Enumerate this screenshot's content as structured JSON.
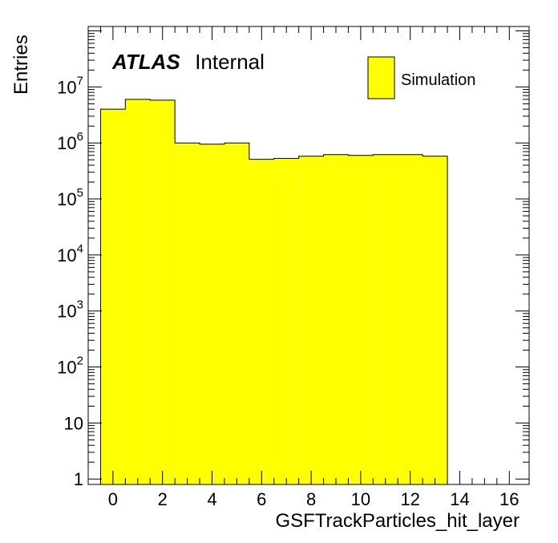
{
  "atlas_label": {
    "bold": "ATLAS",
    "plain": "Internal"
  },
  "legend": {
    "entries": [
      {
        "label": "Simulation",
        "color": "#ffff00"
      }
    ]
  },
  "chart_data": {
    "type": "bar",
    "histogram": true,
    "xlabel": "GSFTrackParticles_hit_layer",
    "ylabel": "Entries",
    "xlim": [
      -1,
      16.8
    ],
    "ylim": [
      0.8,
      120000000.0
    ],
    "y_scale": "log",
    "x_ticks": [
      0,
      2,
      4,
      6,
      8,
      10,
      12,
      14,
      16
    ],
    "y_ticks": [
      {
        "value": 1,
        "base": "1",
        "exp": ""
      },
      {
        "value": 10,
        "base": "10",
        "exp": ""
      },
      {
        "value": 100,
        "base": "10",
        "exp": "2"
      },
      {
        "value": 1000,
        "base": "10",
        "exp": "3"
      },
      {
        "value": 10000,
        "base": "10",
        "exp": "4"
      },
      {
        "value": 100000,
        "base": "10",
        "exp": "5"
      },
      {
        "value": 1000000,
        "base": "10",
        "exp": "6"
      },
      {
        "value": 10000000,
        "base": "10",
        "exp": "7"
      }
    ],
    "bin_edges": [
      -0.5,
      0.5,
      1.5,
      2.5,
      3.5,
      4.5,
      5.5,
      6.5,
      7.5,
      8.5,
      9.5,
      10.5,
      11.5,
      12.5,
      13.5
    ],
    "series": [
      {
        "name": "Simulation",
        "color": "#ffff00",
        "values": [
          4000000,
          6000000,
          5800000,
          1000000,
          950000,
          1000000,
          510000,
          530000,
          580000,
          620000,
          600000,
          620000,
          620000,
          580000
        ]
      }
    ]
  }
}
